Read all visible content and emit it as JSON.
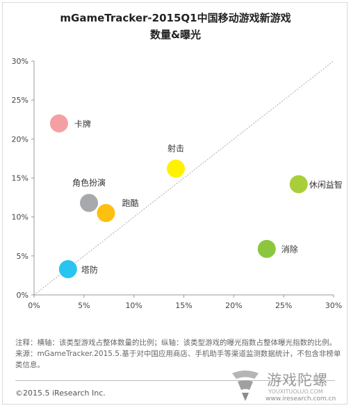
{
  "title_line1": "mGameTracker-2015Q1中国移动游戏新游戏",
  "title_line2": "数量&曝光",
  "chart_data": {
    "type": "scatter",
    "xlim": [
      0,
      30
    ],
    "ylim": [
      0,
      30
    ],
    "x_ticks": [
      "0%",
      "5%",
      "10%",
      "15%",
      "20%",
      "25%",
      "30%"
    ],
    "y_ticks": [
      "0%",
      "5%",
      "10%",
      "15%",
      "20%",
      "25%",
      "30%"
    ],
    "grid": false,
    "diagonal_reference_line": true,
    "points": [
      {
        "label": "卡牌",
        "x": 2.5,
        "y": 22.0,
        "color": "#f4a0a3"
      },
      {
        "label": "射击",
        "x": 14.2,
        "y": 16.2,
        "color": "#fff200"
      },
      {
        "label": "休闲益智",
        "x": 26.5,
        "y": 14.2,
        "color": "#a8cf3a"
      },
      {
        "label": "角色扮演",
        "x": 5.5,
        "y": 11.8,
        "color": "#a7a9ac"
      },
      {
        "label": "跑酷",
        "x": 7.2,
        "y": 10.5,
        "color": "#fdc010"
      },
      {
        "label": "消除",
        "x": 23.3,
        "y": 5.9,
        "color": "#8cc63f"
      },
      {
        "label": "塔防",
        "x": 3.4,
        "y": 3.3,
        "color": "#29c5f0"
      }
    ]
  },
  "notes": {
    "line1": "注释：横轴：该类型游戏占整体数量的比例；纵轴：该类型游戏的曝光指数占整体曝光指数的比例。",
    "line2": "来源：mGameTracker.2015.5.基于对中国应用商店、手机助手等渠道监测数据统计，不包含非榜单",
    "line3": "类信息。"
  },
  "copyright": "©2015.5 iResearch Inc.",
  "watermark": {
    "cn": "游戏陀螺",
    "en": "YOUXITUOLUO.COM",
    "url": "www.iresearch.com.cn"
  }
}
